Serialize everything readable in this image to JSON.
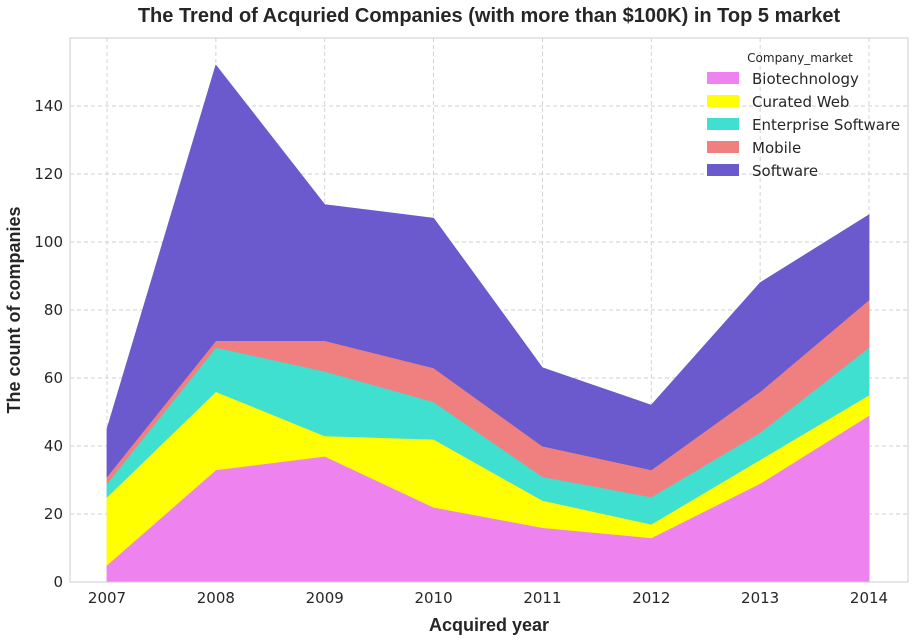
{
  "chart_data": {
    "type": "area",
    "stacked": true,
    "title": "The Trend of Acquried Companies (with more than $100K) in Top 5 market",
    "xlabel": "Acquired year",
    "ylabel": "The count of companies",
    "x": [
      "2007",
      "2008",
      "2009",
      "2010",
      "2011",
      "2012",
      "2013",
      "2014"
    ],
    "ylim": [
      0,
      160
    ],
    "yticks": [
      "0",
      "20",
      "40",
      "60",
      "80",
      "100",
      "120",
      "140"
    ],
    "grid": true,
    "legend": {
      "title": "Company_market",
      "placement": "top-right"
    },
    "series": [
      {
        "name": "Biotechnology",
        "color": "#ee82ee",
        "values": [
          5,
          33,
          37,
          22,
          16,
          13,
          29,
          49
        ]
      },
      {
        "name": "Curated Web",
        "color": "#ffff00",
        "values": [
          20,
          23,
          6,
          20,
          8,
          4,
          7,
          6
        ]
      },
      {
        "name": "Enterprise Software",
        "color": "#40e0d0",
        "values": [
          4,
          13,
          19,
          11,
          7,
          8,
          8,
          14
        ]
      },
      {
        "name": "Mobile",
        "color": "#f08080",
        "values": [
          2,
          2,
          9,
          10,
          9,
          8,
          12,
          14
        ]
      },
      {
        "name": "Software",
        "color": "#6a5acd",
        "values": [
          14,
          81,
          40,
          44,
          23,
          19,
          32,
          25
        ]
      }
    ]
  }
}
